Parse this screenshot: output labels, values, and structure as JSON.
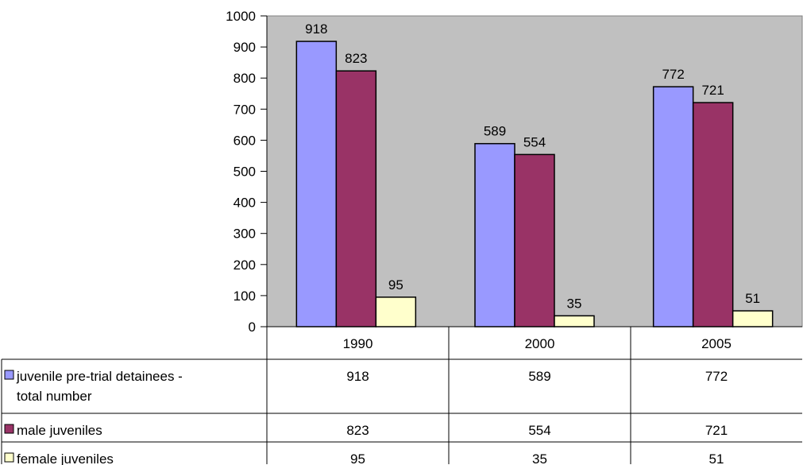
{
  "chart_data": {
    "type": "bar",
    "title": "",
    "xlabel": "",
    "ylabel": "",
    "categories": [
      "1990",
      "2000",
      "2005"
    ],
    "ylim": [
      0,
      1000
    ],
    "yticks": [
      0,
      100,
      200,
      300,
      400,
      500,
      600,
      700,
      800,
      900,
      1000
    ],
    "grid": false,
    "legend_position": "data-table-below",
    "plot_background": "#c0c0c0",
    "series": [
      {
        "name": "juvenile pre-trial detainees - total number",
        "name_lines": [
          "juvenile pre-trial detainees -",
          "total number"
        ],
        "color": "#9999ff",
        "values": [
          918,
          589,
          772
        ]
      },
      {
        "name": "male juveniles",
        "name_lines": [
          "male juveniles"
        ],
        "color": "#993366",
        "values": [
          823,
          554,
          721
        ]
      },
      {
        "name": "female juveniles",
        "name_lines": [
          "female juveniles"
        ],
        "color": "#ffffcc",
        "values": [
          95,
          35,
          51
        ]
      }
    ]
  }
}
